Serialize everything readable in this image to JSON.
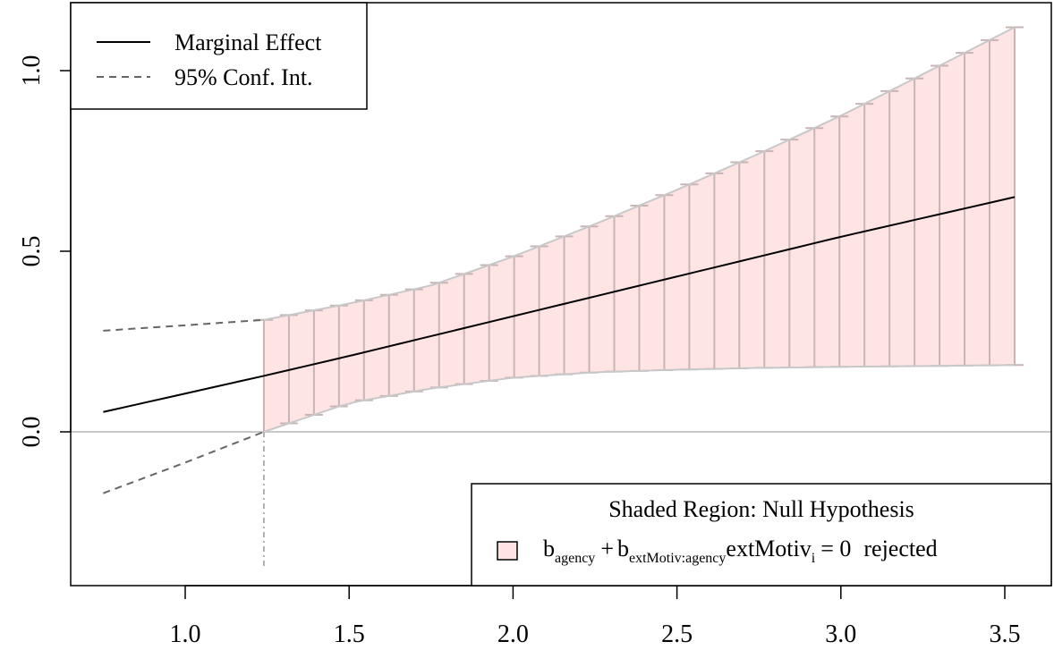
{
  "chart_data": {
    "type": "line",
    "title": "",
    "xlabel": "",
    "ylabel": "",
    "xlim": [
      0.72,
      3.56
    ],
    "ylim": [
      -0.38,
      1.19
    ],
    "x_ticks": [
      1.0,
      1.5,
      2.0,
      2.5,
      3.0,
      3.5
    ],
    "x_tick_labels": [
      "1.0",
      "1.5",
      "2.0",
      "2.5",
      "3.0",
      "3.5"
    ],
    "y_ticks": [
      0.0,
      0.5,
      1.0
    ],
    "y_tick_labels": [
      "0.0",
      "0.5",
      "1.0"
    ],
    "reference_line_y": 0.0,
    "threshold_x": 1.24,
    "grid": false,
    "series": [
      {
        "name": "Marginal Effect",
        "style": "solid",
        "color": "#000000",
        "x": [
          0.75,
          1.24,
          1.5,
          2.0,
          2.5,
          3.0,
          3.53
        ],
        "y": [
          0.055,
          0.155,
          0.21,
          0.32,
          0.43,
          0.54,
          0.65
        ]
      },
      {
        "name": "95% Conf. Int.",
        "style": "dashed",
        "color": "#666666",
        "role": "upper",
        "x": [
          0.75,
          1.0,
          1.24,
          1.5,
          1.75,
          2.0,
          2.25,
          2.5,
          2.75,
          3.0,
          3.25,
          3.53
        ],
        "y": [
          0.28,
          0.295,
          0.31,
          0.355,
          0.405,
          0.485,
          0.575,
          0.67,
          0.77,
          0.875,
          0.99,
          1.12
        ]
      },
      {
        "name": "95% Conf. Int.",
        "style": "dashed",
        "color": "#666666",
        "role": "lower",
        "x": [
          0.75,
          1.0,
          1.24,
          1.5,
          1.75,
          2.0,
          2.25,
          2.5,
          2.75,
          3.0,
          3.25,
          3.53
        ],
        "y": [
          -0.17,
          -0.085,
          0.0,
          0.08,
          0.12,
          0.15,
          0.165,
          0.172,
          0.177,
          0.18,
          0.182,
          0.185
        ]
      }
    ],
    "shaded_region": {
      "x_from": 1.24,
      "x_to": 3.53,
      "fill": "#ffe4e4",
      "bar_color": "#c8b4b4",
      "bar_count": 31
    },
    "legend_top": {
      "placement": "top-left",
      "entries": [
        {
          "label": "Marginal Effect",
          "style": "solid"
        },
        {
          "label": "95% Conf. Int.",
          "style": "dashed"
        }
      ]
    },
    "legend_bottom": {
      "placement": "bottom-right",
      "title": "Shaded Region: Null Hypothesis",
      "formula": {
        "b1": "b",
        "sub1": "agency",
        "plus": "+",
        "b2": "b",
        "sub2": "extMotiv:agency",
        "var": "extMotiv",
        "sub3": "i",
        "equals": "= 0",
        "suffix": "rejected"
      }
    }
  }
}
